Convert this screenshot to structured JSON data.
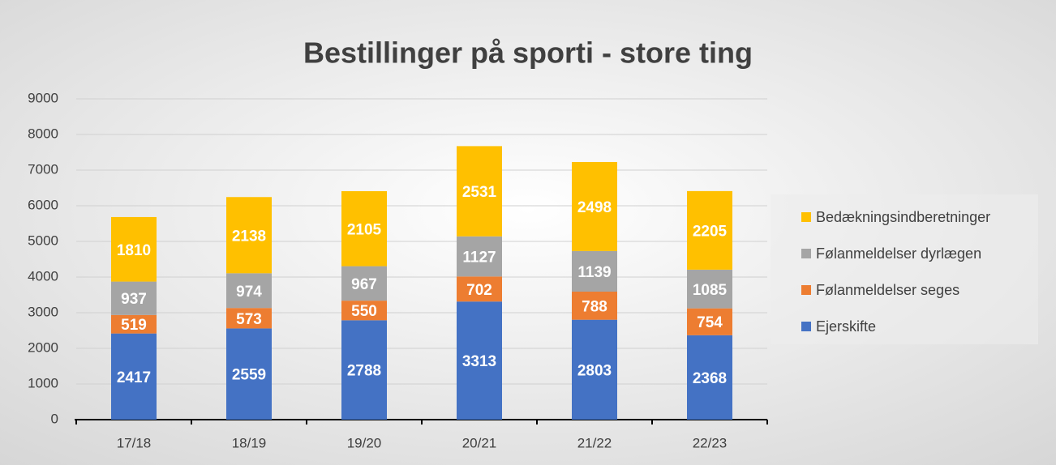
{
  "chart_data": {
    "type": "stacked_bar",
    "title": "Bestillinger på sporti - store ting",
    "categories": [
      "17/18",
      "18/19",
      "19/20",
      "20/21",
      "21/22",
      "22/23"
    ],
    "series": [
      {
        "name": "Ejerskifte",
        "color": "#4472c4",
        "values": [
          2417,
          2559,
          2788,
          3313,
          2803,
          2368
        ]
      },
      {
        "name": "Følanmeldelser seges",
        "color": "#ed7d31",
        "values": [
          519,
          573,
          550,
          702,
          788,
          754
        ]
      },
      {
        "name": "Følanmeldelser dyrlægen",
        "color": "#a5a5a5",
        "values": [
          937,
          974,
          967,
          1127,
          1139,
          1085
        ]
      },
      {
        "name": "Bedækningsindberetninger",
        "color": "#ffc000",
        "values": [
          1810,
          2138,
          2105,
          2531,
          2498,
          2205
        ]
      }
    ],
    "ylim": [
      0,
      9000
    ],
    "yticks": [
      0,
      1000,
      2000,
      3000,
      4000,
      5000,
      6000,
      7000,
      8000,
      9000
    ],
    "grid": true,
    "legend": "right"
  }
}
